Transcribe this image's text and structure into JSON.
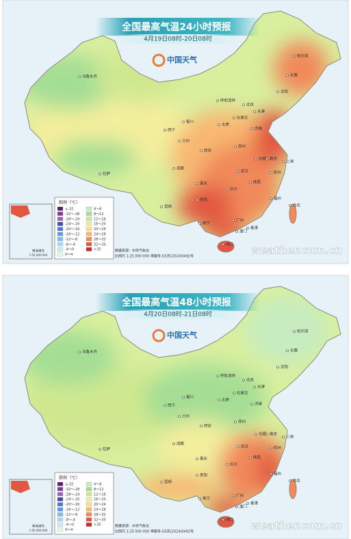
{
  "maps": [
    {
      "title": "全国最高气温24小时预报",
      "subtitle": "4月19日08时-20日08时"
    },
    {
      "title": "全国最高气温48小时预报",
      "subtitle": "4月20日08时-21日08时"
    }
  ],
  "logo": "中国天气",
  "legend": {
    "title": "图例（℃）",
    "items": [
      {
        "label": "≤-32",
        "color": "#5a1a6e"
      },
      {
        "label": "-32～-28",
        "color": "#7a3c97"
      },
      {
        "label": "-28～-24",
        "color": "#9a62b5"
      },
      {
        "label": "-24～-20",
        "color": "#3d4fa8"
      },
      {
        "label": "-20～-16",
        "color": "#4f78c8"
      },
      {
        "label": "-16～-12",
        "color": "#5f9bdc"
      },
      {
        "label": "-12～-8",
        "color": "#7fbde8"
      },
      {
        "label": "-8～-4",
        "color": "#a6d8f0"
      },
      {
        "label": "-4～0",
        "color": "#cdecf6"
      },
      {
        "label": "0～4",
        "color": "#e6f6e6"
      },
      {
        "label": "4～8",
        "color": "#c6ecc0"
      },
      {
        "label": "8～12",
        "color": "#a4de94"
      },
      {
        "label": "12～16",
        "color": "#cfe890"
      },
      {
        "label": "16～20",
        "color": "#f2ee9c"
      },
      {
        "label": "20～24",
        "color": "#fbdc8a"
      },
      {
        "label": "24～28",
        "color": "#f8b872"
      },
      {
        "label": "28～32",
        "color": "#f1895a"
      },
      {
        "label": "32～35",
        "color": "#e2573f"
      },
      {
        "label": ">35",
        "color": "#c62a2a"
      }
    ]
  },
  "inset": {
    "title": "南海诸岛",
    "scale": "1:50 000 000"
  },
  "source": "数据来源：中央气象台",
  "scale": "比例尺 1:25 000 000",
  "review": "审图号:GS京(2024)0492号",
  "watermark": "weather.com.cn",
  "map_labels": [
    "乌鲁木齐",
    "拉萨",
    "西宁",
    "兰州",
    "银川",
    "呼和浩特",
    "北京",
    "天津",
    "石家庄",
    "太原",
    "济南",
    "郑州",
    "西安",
    "成都",
    "重庆",
    "贵阳",
    "昆明",
    "南宁",
    "广州",
    "海口",
    "武汉",
    "长沙",
    "南昌",
    "合肥",
    "南京",
    "上海",
    "杭州",
    "福州",
    "台北",
    "沈阳",
    "长春",
    "哈尔滨",
    "香港",
    "澳门"
  ]
}
